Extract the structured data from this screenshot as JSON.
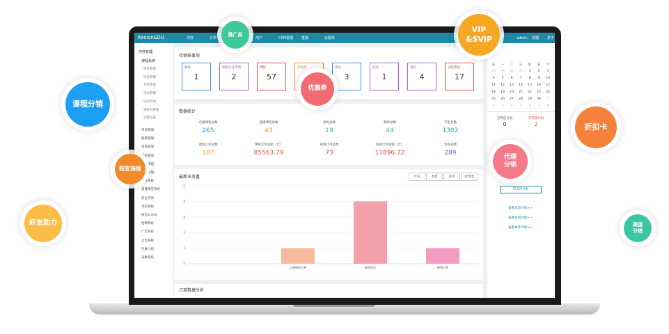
{
  "bubbles": [
    {
      "lines": [
        "推广员"
      ],
      "color": "#3ec99a"
    },
    {
      "lines": [
        "VIP",
        "&SVIP"
      ],
      "color": "#f7a823"
    },
    {
      "lines": [
        "课程分销"
      ],
      "color": "#1d9ff4"
    },
    {
      "lines": [
        "折扣卡"
      ],
      "color": "#f5823a"
    },
    {
      "lines": [
        "裂变海报"
      ],
      "color": "#f08a2a"
    },
    {
      "lines": [
        "优惠券"
      ],
      "color": "#f26b72"
    },
    {
      "lines": [
        "代理",
        "分销"
      ],
      "color": "#f47a8a"
    },
    {
      "lines": [
        "好友助力"
      ],
      "color": "#fbbd45"
    },
    {
      "lines": [
        "渠道",
        "分销"
      ],
      "color": "#3cc6a6"
    }
  ],
  "app": {
    "brand": "KesionEDU",
    "nav": [
      "内容",
      "订单",
      "互动",
      "用户",
      "CRM管理",
      "直播",
      "云服务"
    ],
    "user": [
      "admin",
      "前端",
      "关于"
    ],
    "sidebar": {
      "title": "内容管理",
      "group": "课程系统",
      "sub": [
        "课程管理",
        "现场管理",
        "专栏管理",
        "活动管理",
        "培训计划",
        "课程包管理",
        "功能设置"
      ],
      "items": [
        "考试管理",
        "题库管理",
        "电商管理",
        "订单管理",
        "分享管理",
        "问答管理",
        "积分系统",
        "直播课堂系统",
        "前台交易",
        "求职系统",
        "微信公众号",
        "招聘系统",
        "广告系统",
        "公告系统",
        "社群小组",
        "采集系统"
      ]
    },
    "pending": {
      "title": "待审核事项",
      "cards": [
        {
          "label": "机构",
          "value": "1",
          "color": "#3a8fd9"
        },
        {
          "label": "机构认证申请",
          "value": "2",
          "color": "#a35fc9"
        },
        {
          "label": "课程",
          "value": "57",
          "color": "#e0504a"
        },
        {
          "label": "开发票",
          "color": "#f08a2a"
        },
        {
          "label": "评价",
          "value": "3",
          "color": "#3a8fd9"
        },
        {
          "label": "提问",
          "value": "1",
          "color": "#a35fc9"
        },
        {
          "label": "资料",
          "value": "4",
          "color": "#a35fc9"
        },
        {
          "label": "试卷审核",
          "value": "17",
          "color": "#e0504a"
        }
      ]
    },
    "stats": {
      "title": "数据统计",
      "rows": [
        [
          {
            "label": "点播课程总数",
            "value": "265",
            "color": "#3a8fd9"
          },
          {
            "label": "直播课程总数",
            "value": "43",
            "color": "#f08a2a"
          },
          {
            "label": "机构总数",
            "value": "19",
            "color": "#3cc08a"
          },
          {
            "label": "教师总数",
            "value": "44",
            "color": "#3cc08a"
          },
          {
            "label": "学生总数",
            "value": "1302",
            "color": "#2aa6a0"
          }
        ],
        [
          {
            "label": "课程订单总数",
            "value": "187",
            "color": "#f0a030"
          },
          {
            "label": "课程订单总额（元）",
            "value": "85563.79",
            "color": "#e0504a"
          },
          {
            "label": "商城订单总数",
            "value": "73",
            "color": "#e0504a"
          },
          {
            "label": "商城订单总额（元）",
            "value": "11896.72",
            "color": "#e0504a"
          },
          {
            "label": "试卷总数",
            "value": "289",
            "color": "#6a5fc9"
          }
        ]
      ]
    },
    "orders_title": "订单数据分析"
  },
  "chart_data": {
    "type": "bar",
    "title": "最新业务量",
    "tabs": [
      "今日",
      "本周",
      "本月",
      "本年度"
    ],
    "categories": [
      "点播课程订单",
      "新增会员",
      "新增订单"
    ],
    "values": [
      2,
      8,
      2
    ],
    "colors": [
      "#f5b99c",
      "#f3a0aa",
      "#f39cc0"
    ],
    "ylim": [
      0,
      10
    ],
    "yticks": [
      0,
      2,
      4,
      6,
      8,
      10
    ],
    "grid": true
  },
  "side": {
    "weekdays": [
      "日",
      "一",
      "二",
      "三",
      "四",
      "五",
      "六"
    ],
    "weeks": [
      [
        28,
        29,
        30,
        31,
        1,
        2,
        3
      ],
      [
        4,
        5,
        6,
        7,
        8,
        9,
        10
      ],
      [
        11,
        12,
        13,
        14,
        15,
        16,
        17
      ],
      [
        18,
        19,
        20,
        21,
        22,
        23,
        24
      ],
      [
        25,
        26,
        27,
        28,
        29,
        30,
        1
      ],
      [
        2,
        3,
        4,
        5,
        6,
        7,
        8
      ]
    ],
    "done": {
      "label": "已完成计划",
      "value": "0"
    },
    "todo": {
      "label": "未完成计划",
      "value": "2"
    },
    "button": "写工作计划",
    "links": [
      "查看本日计划>>",
      "查看本周计划>>",
      "查看本月计划>>"
    ]
  }
}
